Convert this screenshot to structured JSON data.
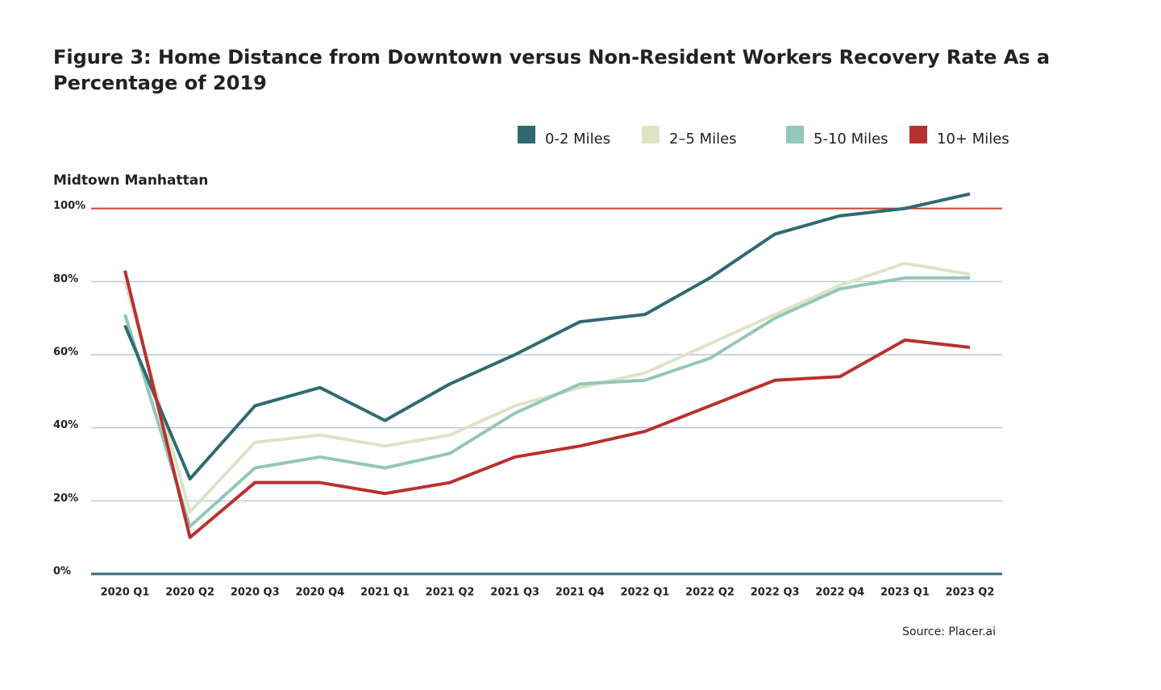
{
  "chart_data": {
    "type": "line",
    "title": "Figure 3: Home Distance from Downtown versus Non-Resident Workers Recovery Rate As a Percentage of 2019",
    "subtitle": "Midtown Manhattan",
    "source": "Source: Placer.ai",
    "categories": [
      "2020 Q1",
      "2020 Q2",
      "2020 Q3",
      "2020 Q4",
      "2021 Q1",
      "2021 Q2",
      "2021 Q3",
      "2021 Q4",
      "2022 Q1",
      "2022 Q2",
      "2022 Q3",
      "2022 Q4",
      "2023 Q1",
      "2023 Q2"
    ],
    "series": [
      {
        "name": "0-2 Miles",
        "color": "#2f6a72",
        "values": [
          68,
          26,
          46,
          51,
          42,
          52,
          60,
          69,
          71,
          81,
          93,
          98,
          100,
          104
        ]
      },
      {
        "name": "2–5 Miles",
        "color": "#dfe3c6",
        "values": [
          80,
          17,
          36,
          38,
          35,
          38,
          46,
          51,
          55,
          63,
          71,
          79,
          85,
          82
        ]
      },
      {
        "name": "5-10 Miles",
        "color": "#93c7b8",
        "values": [
          71,
          13,
          29,
          32,
          29,
          33,
          44,
          52,
          53,
          59,
          70,
          78,
          81,
          81
        ]
      },
      {
        "name": "10+ Miles",
        "color": "#b8312f",
        "values": [
          83,
          10,
          25,
          25,
          22,
          25,
          32,
          35,
          39,
          46,
          53,
          54,
          64,
          62
        ]
      }
    ],
    "ylim": [
      0,
      105
    ],
    "yticks": [
      {
        "value": 0,
        "label": "0%"
      },
      {
        "value": 20,
        "label": "20%"
      },
      {
        "value": 40,
        "label": "40%"
      },
      {
        "value": 60,
        "label": "60%"
      },
      {
        "value": 80,
        "label": "80%"
      },
      {
        "value": 100,
        "label": "100%"
      }
    ],
    "grid": true,
    "grid_color": "#a9bccd",
    "zero_line_color": "#2f6a72",
    "target_line": {
      "value": 100,
      "color": "#c8472b"
    }
  }
}
